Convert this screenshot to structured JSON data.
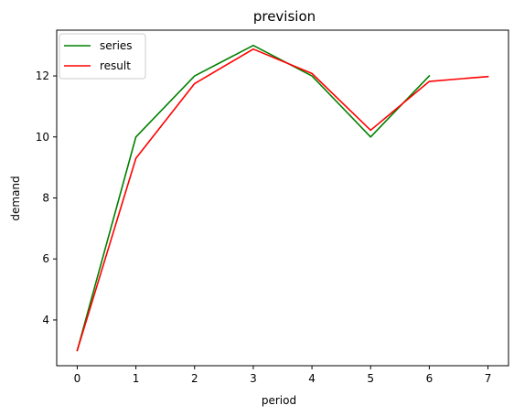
{
  "chart_data": {
    "type": "line",
    "title": "prevision",
    "xlabel": "period",
    "ylabel": "demand",
    "xlim": [
      -0.35,
      7.35
    ],
    "ylim": [
      2.5,
      13.5
    ],
    "xticks": [
      0,
      1,
      2,
      3,
      4,
      5,
      6,
      7
    ],
    "yticks": [
      4,
      6,
      8,
      10,
      12
    ],
    "grid": false,
    "legend": "top-left",
    "series": [
      {
        "name": "series",
        "color": "#008000",
        "x": [
          0,
          1,
          2,
          3,
          4,
          5,
          6
        ],
        "values": [
          3,
          10,
          12,
          13,
          12,
          10,
          12
        ]
      },
      {
        "name": "result",
        "color": "#ff0000",
        "x": [
          0,
          1,
          2,
          3,
          4,
          5,
          6,
          7
        ],
        "values": [
          3,
          9.3,
          11.75,
          12.88,
          12.08,
          10.22,
          11.82,
          11.98
        ]
      }
    ]
  }
}
